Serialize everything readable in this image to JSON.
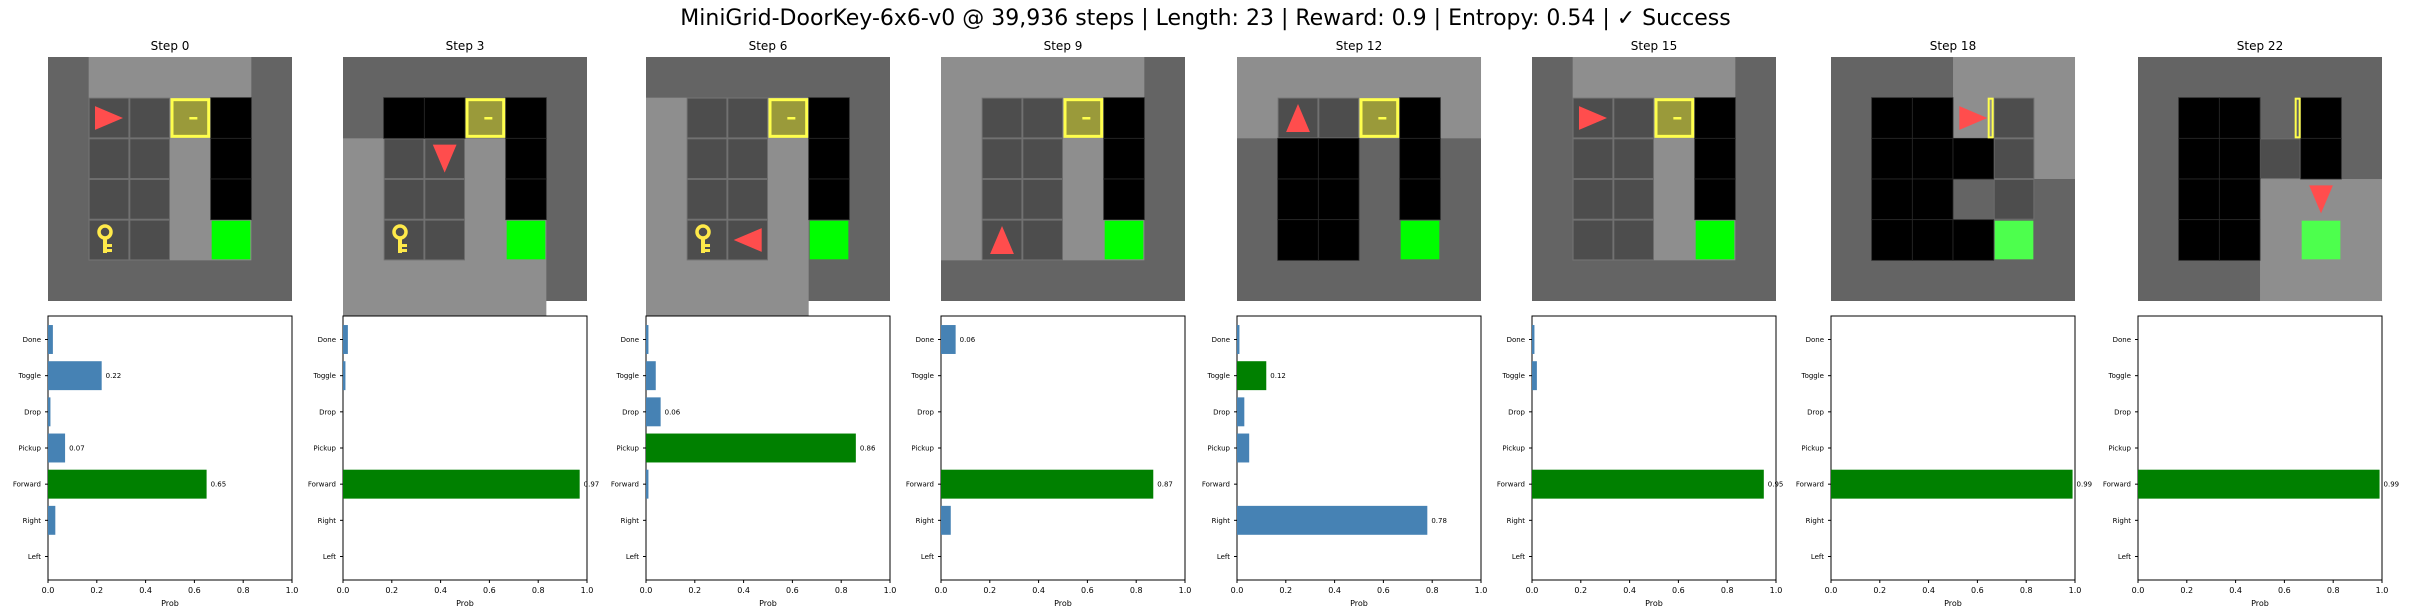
{
  "title": "MiniGrid-DoorKey-6x6-v0 @ 39,936 steps | Length: 23 | Reward: 0.9 | Entropy: 0.54 | ✓ Success",
  "colors": {
    "fog": "#646464",
    "visible_floor": "#8e8e8e",
    "grid_cell": "#4d4d4d",
    "grid_cell_seen": "#5a5a5a",
    "wall_black": "#000000",
    "goal": "#00ff00",
    "goal_dim": "#4dff4d",
    "door": "#ffff4d",
    "agent": "#ff4d4d",
    "key": "#ffea4a",
    "bar_default": "#4682b4",
    "bar_selected": "#008000"
  },
  "chart_data": [
    {
      "type": "bar",
      "title": "Step 0",
      "xlabel": "Prob",
      "xlim": [
        0,
        1
      ],
      "xticks": [
        "0.0",
        "0.2",
        "0.4",
        "0.6",
        "0.8",
        "1.0"
      ],
      "categories": [
        "Done",
        "Toggle",
        "Drop",
        "Pickup",
        "Forward",
        "Right",
        "Left"
      ],
      "values": [
        0.02,
        0.22,
        0.01,
        0.07,
        0.65,
        0.03,
        0.0
      ],
      "labels": [
        "",
        "0.22",
        "",
        "0.07",
        "0.65",
        "",
        ""
      ],
      "selected": "Forward",
      "grid": {
        "agent": [
          1,
          1
        ],
        "agent_dir": "right",
        "door": [
          3,
          1
        ],
        "key": [
          1,
          4
        ],
        "goal": [
          4,
          4
        ],
        "view": [
          [
            1,
            0
          ],
          [
            4,
            4
          ]
        ],
        "black": [
          [
            4,
            1
          ],
          [
            4,
            2
          ],
          [
            4,
            3
          ]
        ],
        "cells": [
          [
            1,
            1
          ],
          [
            2,
            4
          ]
        ]
      }
    },
    {
      "type": "bar",
      "title": "Step 3",
      "xlabel": "Prob",
      "xlim": [
        0,
        1
      ],
      "xticks": [
        "0.0",
        "0.2",
        "0.4",
        "0.6",
        "0.8",
        "1.0"
      ],
      "categories": [
        "Done",
        "Toggle",
        "Drop",
        "Pickup",
        "Forward",
        "Right",
        "Left"
      ],
      "values": [
        0.02,
        0.01,
        0.0,
        0.0,
        0.97,
        0.0,
        0.0
      ],
      "labels": [
        "",
        "",
        "",
        "",
        "0.97",
        "",
        ""
      ],
      "selected": "Forward",
      "grid": {
        "agent": [
          2,
          2
        ],
        "agent_dir": "down",
        "door": [
          3,
          1
        ],
        "key": [
          1,
          4
        ],
        "goal": [
          4,
          4
        ],
        "view": [
          [
            0,
            2
          ],
          [
            4,
            6
          ]
        ],
        "black": [
          [
            1,
            1
          ],
          [
            2,
            1
          ],
          [
            4,
            1
          ],
          [
            4,
            2
          ],
          [
            4,
            3
          ]
        ],
        "cells": [
          [
            1,
            2
          ],
          [
            2,
            4
          ]
        ]
      }
    },
    {
      "type": "bar",
      "title": "Step 6",
      "xlabel": "Prob",
      "xlim": [
        0,
        1
      ],
      "xticks": [
        "0.0",
        "0.2",
        "0.4",
        "0.6",
        "0.8",
        "1.0"
      ],
      "categories": [
        "Done",
        "Toggle",
        "Drop",
        "Pickup",
        "Forward",
        "Right",
        "Left"
      ],
      "values": [
        0.01,
        0.04,
        0.06,
        0.86,
        0.01,
        0.0,
        0.0
      ],
      "labels": [
        "",
        "",
        "0.06",
        "0.86",
        "",
        "",
        ""
      ],
      "selected": "Pickup",
      "grid": {
        "agent": [
          2,
          4
        ],
        "agent_dir": "left",
        "door": [
          3,
          1
        ],
        "key": [
          1,
          4
        ],
        "goal": [
          4,
          4
        ],
        "view": [
          [
            0,
            1
          ],
          [
            3,
            6
          ]
        ],
        "black": [
          [
            4,
            1
          ],
          [
            4,
            2
          ],
          [
            4,
            3
          ]
        ],
        "cells": [
          [
            1,
            1
          ],
          [
            2,
            4
          ]
        ]
      }
    },
    {
      "type": "bar",
      "title": "Step 9",
      "xlabel": "Prob",
      "xlim": [
        0,
        1
      ],
      "xticks": [
        "0.0",
        "0.2",
        "0.4",
        "0.6",
        "0.8",
        "1.0"
      ],
      "categories": [
        "Done",
        "Toggle",
        "Drop",
        "Pickup",
        "Forward",
        "Right",
        "Left"
      ],
      "values": [
        0.06,
        0.0,
        0.0,
        0.0,
        0.87,
        0.04,
        0.0
      ],
      "labels": [
        "0.06",
        "",
        "",
        "",
        "0.87",
        "",
        ""
      ],
      "selected": "Forward",
      "grid": {
        "agent": [
          1,
          4
        ],
        "agent_dir": "up",
        "door": [
          3,
          1
        ],
        "key": null,
        "goal": [
          4,
          4
        ],
        "view": [
          [
            0,
            0
          ],
          [
            4,
            4
          ]
        ],
        "black": [
          [
            4,
            1
          ],
          [
            4,
            2
          ],
          [
            4,
            3
          ]
        ],
        "cells": [
          [
            1,
            1
          ],
          [
            2,
            4
          ]
        ]
      }
    },
    {
      "type": "bar",
      "title": "Step 12",
      "xlabel": "Prob",
      "xlim": [
        0,
        1
      ],
      "xticks": [
        "0.0",
        "0.2",
        "0.4",
        "0.6",
        "0.8",
        "1.0"
      ],
      "categories": [
        "Done",
        "Toggle",
        "Drop",
        "Pickup",
        "Forward",
        "Right",
        "Left"
      ],
      "values": [
        0.01,
        0.12,
        0.03,
        0.05,
        0.0,
        0.78,
        0.0
      ],
      "labels": [
        "",
        "0.12",
        "",
        "",
        "",
        "0.78",
        ""
      ],
      "selected": "Toggle",
      "grid": {
        "agent": [
          1,
          1
        ],
        "agent_dir": "up",
        "door": [
          3,
          1
        ],
        "key": null,
        "goal": [
          4,
          4
        ],
        "view": [
          [
            0,
            0
          ],
          [
            5,
            1
          ]
        ],
        "black": [
          [
            1,
            2
          ],
          [
            1,
            3
          ],
          [
            1,
            4
          ],
          [
            2,
            2
          ],
          [
            2,
            3
          ],
          [
            2,
            4
          ],
          [
            4,
            1
          ],
          [
            4,
            2
          ],
          [
            4,
            3
          ]
        ],
        "cells": [
          [
            1,
            1
          ],
          [
            2,
            1
          ]
        ]
      }
    },
    {
      "type": "bar",
      "title": "Step 15",
      "xlabel": "Prob",
      "xlim": [
        0,
        1
      ],
      "xticks": [
        "0.0",
        "0.2",
        "0.4",
        "0.6",
        "0.8",
        "1.0"
      ],
      "categories": [
        "Done",
        "Toggle",
        "Drop",
        "Pickup",
        "Forward",
        "Right",
        "Left"
      ],
      "values": [
        0.01,
        0.02,
        0.0,
        0.0,
        0.95,
        0.0,
        0.0
      ],
      "labels": [
        "",
        "",
        "",
        "",
        "0.95",
        "",
        ""
      ],
      "selected": "Forward",
      "grid": {
        "agent": [
          1,
          1
        ],
        "agent_dir": "right",
        "door": [
          3,
          1
        ],
        "key": null,
        "goal": [
          4,
          4
        ],
        "view": [
          [
            1,
            0
          ],
          [
            4,
            4
          ]
        ],
        "black": [
          [
            4,
            1
          ],
          [
            4,
            2
          ],
          [
            4,
            3
          ]
        ],
        "cells": [
          [
            1,
            1
          ],
          [
            2,
            4
          ]
        ]
      }
    },
    {
      "type": "bar",
      "title": "Step 18",
      "xlabel": "Prob",
      "xlim": [
        0,
        1
      ],
      "xticks": [
        "0.0",
        "0.2",
        "0.4",
        "0.6",
        "0.8",
        "1.0"
      ],
      "categories": [
        "Done",
        "Toggle",
        "Drop",
        "Pickup",
        "Forward",
        "Right",
        "Left"
      ],
      "values": [
        0.0,
        0.0,
        0.0,
        0.0,
        0.99,
        0.0,
        0.0
      ],
      "labels": [
        "",
        "",
        "",
        "",
        "0.99",
        "",
        ""
      ],
      "selected": "Forward",
      "grid": {
        "agent": [
          3,
          1
        ],
        "agent_dir": "right",
        "door": [
          3,
          1
        ],
        "door_open": true,
        "key": null,
        "goal": [
          4,
          4
        ],
        "view": [
          [
            3,
            0
          ],
          [
            5,
            2
          ]
        ],
        "black": [
          [
            1,
            1
          ],
          [
            2,
            1
          ],
          [
            1,
            2
          ],
          [
            2,
            2
          ],
          [
            3,
            2
          ],
          [
            1,
            3
          ],
          [
            2,
            3
          ],
          [
            1,
            4
          ],
          [
            2,
            4
          ],
          [
            3,
            4
          ]
        ],
        "cells": [
          [
            4,
            1
          ],
          [
            4,
            3
          ]
        ]
      }
    },
    {
      "type": "bar",
      "title": "Step 22",
      "xlabel": "Prob",
      "xlim": [
        0,
        1
      ],
      "xticks": [
        "0.0",
        "0.2",
        "0.4",
        "0.6",
        "0.8",
        "1.0"
      ],
      "categories": [
        "Done",
        "Toggle",
        "Drop",
        "Pickup",
        "Forward",
        "Right",
        "Left"
      ],
      "values": [
        0.0,
        0.0,
        0.0,
        0.0,
        0.99,
        0.0,
        0.0
      ],
      "labels": [
        "",
        "",
        "",
        "",
        "0.99",
        "",
        ""
      ],
      "selected": "Forward",
      "grid": {
        "agent": [
          4,
          3
        ],
        "agent_dir": "down",
        "door": [
          3,
          1
        ],
        "door_open": true,
        "key": null,
        "goal": [
          4,
          4
        ],
        "view": [
          [
            3,
            3
          ],
          [
            5,
            5
          ]
        ],
        "black": [
          [
            1,
            1
          ],
          [
            2,
            1
          ],
          [
            4,
            1
          ],
          [
            1,
            2
          ],
          [
            2,
            2
          ],
          [
            4,
            2
          ],
          [
            1,
            3
          ],
          [
            2,
            3
          ],
          [
            1,
            4
          ],
          [
            2,
            4
          ]
        ],
        "cells": [
          [
            3,
            2
          ],
          [
            4,
            2
          ]
        ]
      }
    }
  ]
}
